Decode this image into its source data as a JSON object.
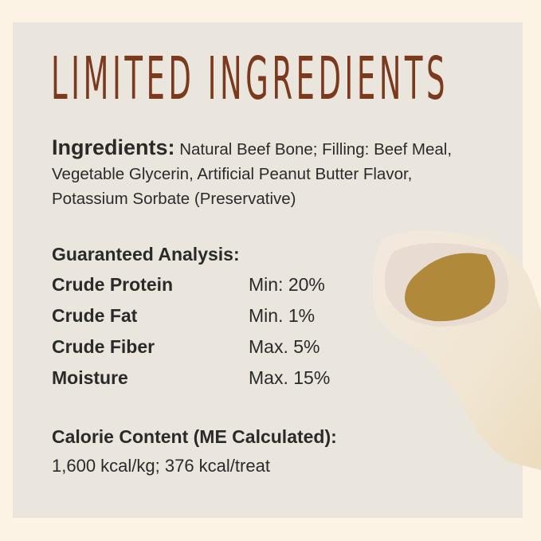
{
  "title": "LIMITED INGREDIENTS",
  "ingredients": {
    "label": "Ingredients:",
    "text": "Natural Beef Bone; Filling: Beef Meal, Vegetable Glycerin, Artificial Peanut Butter Flavor, Potassium Sorbate (Preservative)"
  },
  "analysis": {
    "heading": "Guaranteed Analysis:",
    "rows": [
      {
        "name": "Crude Protein",
        "value": "Min: 20%"
      },
      {
        "name": "Crude Fat",
        "value": "Min. 1%"
      },
      {
        "name": "Crude Fiber",
        "value": "Max. 5%"
      },
      {
        "name": "Moisture",
        "value": "Max. 15%"
      }
    ]
  },
  "calorie": {
    "heading": "Calorie Content (ME Calculated):",
    "value": "1,600 kcal/kg; 376 kcal/treat"
  },
  "colors": {
    "title": "#7b3a1e",
    "panel": "#ebe6dd",
    "background": "#fdf3e5",
    "filling": "#b08a3a"
  }
}
